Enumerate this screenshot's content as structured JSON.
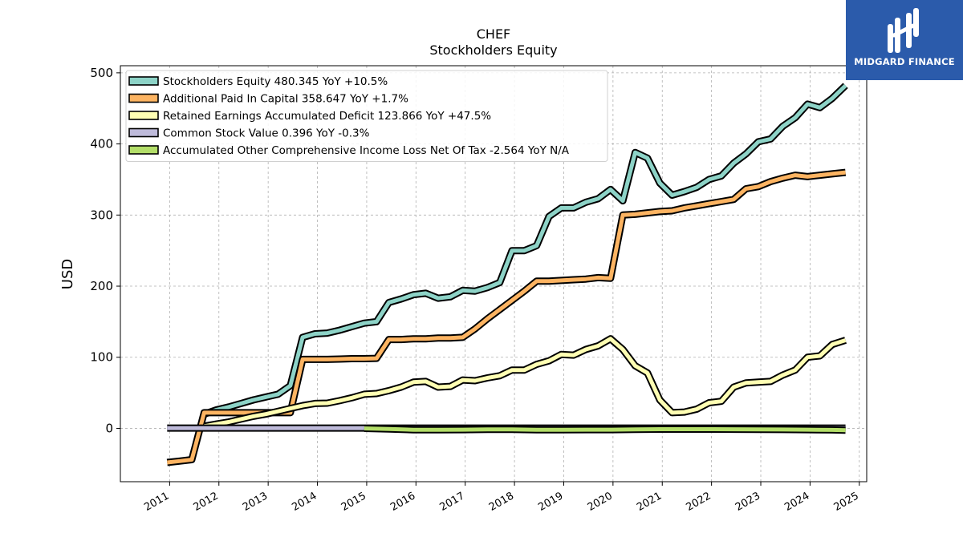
{
  "colors": {
    "equity": "#8dd3c7",
    "apic": "#fdb462",
    "retained": "#ffffb3",
    "common": "#bebada",
    "aoci": "#b3de69",
    "logo_bg": "#2b5bab"
  },
  "logo": {
    "text": "MIDGARD FINANCE"
  },
  "chart_data": {
    "type": "line",
    "title": "CHEF",
    "subtitle": "Stockholders  Equity",
    "xlabel": "",
    "ylabel": "USD",
    "ylim": [
      -75,
      510
    ],
    "xlim": [
      2010.0,
      2025.15
    ],
    "yticks": [
      0,
      100,
      200,
      300,
      400,
      500
    ],
    "xticks": [
      "2011",
      "2012",
      "2013",
      "2014",
      "2015",
      "2016",
      "2017",
      "2018",
      "2019",
      "2020",
      "2021",
      "2022",
      "2023",
      "2024",
      "2025"
    ],
    "grid": true,
    "legend_position": "top-left",
    "series": [
      {
        "name": "Stockholders Equity  480.345 YoY +10.5%",
        "color_key": "equity",
        "points": [
          [
            2011.7,
            20
          ],
          [
            2011.95,
            26
          ],
          [
            2012.2,
            30
          ],
          [
            2012.45,
            35
          ],
          [
            2012.7,
            40
          ],
          [
            2012.95,
            44
          ],
          [
            2013.2,
            48
          ],
          [
            2013.45,
            60
          ],
          [
            2013.7,
            128
          ],
          [
            2013.95,
            133
          ],
          [
            2014.2,
            134
          ],
          [
            2014.45,
            138
          ],
          [
            2014.7,
            143
          ],
          [
            2014.95,
            148
          ],
          [
            2015.2,
            150
          ],
          [
            2015.45,
            177
          ],
          [
            2015.7,
            182
          ],
          [
            2015.95,
            188
          ],
          [
            2016.2,
            190
          ],
          [
            2016.45,
            183
          ],
          [
            2016.7,
            185
          ],
          [
            2016.95,
            194
          ],
          [
            2017.2,
            193
          ],
          [
            2017.45,
            198
          ],
          [
            2017.7,
            205
          ],
          [
            2017.95,
            250
          ],
          [
            2018.2,
            250
          ],
          [
            2018.45,
            257
          ],
          [
            2018.7,
            298
          ],
          [
            2018.95,
            310
          ],
          [
            2019.2,
            310
          ],
          [
            2019.45,
            318
          ],
          [
            2019.7,
            323
          ],
          [
            2019.95,
            336
          ],
          [
            2020.2,
            320
          ],
          [
            2020.45,
            388
          ],
          [
            2020.7,
            380
          ],
          [
            2020.95,
            345
          ],
          [
            2021.2,
            328
          ],
          [
            2021.45,
            333
          ],
          [
            2021.7,
            339
          ],
          [
            2021.95,
            350
          ],
          [
            2022.2,
            355
          ],
          [
            2022.45,
            373
          ],
          [
            2022.7,
            386
          ],
          [
            2022.95,
            403
          ],
          [
            2023.2,
            407
          ],
          [
            2023.45,
            425
          ],
          [
            2023.7,
            437
          ],
          [
            2023.95,
            456
          ],
          [
            2024.2,
            451
          ],
          [
            2024.45,
            464
          ],
          [
            2024.72,
            482
          ]
        ]
      },
      {
        "name": "Additional Paid In Capital  358.647 YoY +1.7%",
        "color_key": "apic",
        "points": [
          [
            2010.95,
            -48
          ],
          [
            2011.2,
            -46
          ],
          [
            2011.45,
            -44
          ],
          [
            2011.7,
            22
          ],
          [
            2011.95,
            22
          ],
          [
            2012.2,
            22
          ],
          [
            2012.45,
            22
          ],
          [
            2012.7,
            22
          ],
          [
            2012.95,
            22
          ],
          [
            2013.2,
            22
          ],
          [
            2013.45,
            22
          ],
          [
            2013.7,
            97
          ],
          [
            2013.95,
            97
          ],
          [
            2014.2,
            97
          ],
          [
            2014.45,
            97.5
          ],
          [
            2014.7,
            98
          ],
          [
            2014.95,
            98
          ],
          [
            2015.2,
            98.5
          ],
          [
            2015.45,
            125
          ],
          [
            2015.7,
            125
          ],
          [
            2015.95,
            126
          ],
          [
            2016.2,
            126
          ],
          [
            2016.45,
            127
          ],
          [
            2016.7,
            127
          ],
          [
            2016.95,
            128
          ],
          [
            2017.2,
            140
          ],
          [
            2017.45,
            154
          ],
          [
            2017.7,
            167
          ],
          [
            2017.95,
            180
          ],
          [
            2018.2,
            193
          ],
          [
            2018.45,
            207
          ],
          [
            2018.7,
            207
          ],
          [
            2018.95,
            208
          ],
          [
            2019.2,
            209
          ],
          [
            2019.45,
            210
          ],
          [
            2019.7,
            212
          ],
          [
            2019.95,
            211
          ],
          [
            2020.2,
            300
          ],
          [
            2020.45,
            301
          ],
          [
            2020.7,
            303
          ],
          [
            2020.95,
            305
          ],
          [
            2021.2,
            306
          ],
          [
            2021.45,
            310
          ],
          [
            2021.7,
            313
          ],
          [
            2021.95,
            316
          ],
          [
            2022.2,
            319
          ],
          [
            2022.45,
            322
          ],
          [
            2022.7,
            337
          ],
          [
            2022.95,
            340
          ],
          [
            2023.2,
            347
          ],
          [
            2023.45,
            352
          ],
          [
            2023.7,
            356
          ],
          [
            2023.95,
            354
          ],
          [
            2024.2,
            356
          ],
          [
            2024.45,
            358
          ],
          [
            2024.72,
            360
          ]
        ]
      },
      {
        "name": "Retained Earnings Accumulated Deficit  123.866 YoY +47.5%",
        "color_key": "retained",
        "points": [
          [
            2011.7,
            3
          ],
          [
            2011.95,
            6
          ],
          [
            2012.2,
            9
          ],
          [
            2012.45,
            13
          ],
          [
            2012.7,
            17
          ],
          [
            2012.95,
            20
          ],
          [
            2013.2,
            24
          ],
          [
            2013.45,
            28
          ],
          [
            2013.7,
            32
          ],
          [
            2013.95,
            35
          ],
          [
            2014.2,
            35.5
          ],
          [
            2014.45,
            39
          ],
          [
            2014.7,
            43
          ],
          [
            2014.95,
            48
          ],
          [
            2015.2,
            49
          ],
          [
            2015.45,
            53
          ],
          [
            2015.7,
            58
          ],
          [
            2015.95,
            65
          ],
          [
            2016.2,
            66
          ],
          [
            2016.45,
            58
          ],
          [
            2016.7,
            59
          ],
          [
            2016.95,
            68
          ],
          [
            2017.2,
            67
          ],
          [
            2017.45,
            71
          ],
          [
            2017.7,
            74
          ],
          [
            2017.95,
            82
          ],
          [
            2018.2,
            82
          ],
          [
            2018.45,
            90
          ],
          [
            2018.7,
            95
          ],
          [
            2018.95,
            104
          ],
          [
            2019.2,
            103
          ],
          [
            2019.45,
            111
          ],
          [
            2019.7,
            116
          ],
          [
            2019.95,
            126
          ],
          [
            2020.2,
            111
          ],
          [
            2020.45,
            88
          ],
          [
            2020.7,
            78
          ],
          [
            2020.95,
            40
          ],
          [
            2021.2,
            22
          ],
          [
            2021.45,
            23
          ],
          [
            2021.7,
            27
          ],
          [
            2021.95,
            36
          ],
          [
            2022.2,
            38
          ],
          [
            2022.45,
            58
          ],
          [
            2022.7,
            64
          ],
          [
            2022.95,
            65
          ],
          [
            2023.2,
            66
          ],
          [
            2023.45,
            75
          ],
          [
            2023.7,
            82
          ],
          [
            2023.95,
            100
          ],
          [
            2024.2,
            102
          ],
          [
            2024.45,
            118
          ],
          [
            2024.72,
            124
          ]
        ]
      },
      {
        "name": "Common Stock Value  0.396 YoY -0.3%",
        "color_key": "common",
        "points": [
          [
            2010.95,
            0.4
          ],
          [
            2014.95,
            0.4
          ],
          [
            2016.95,
            0.4
          ],
          [
            2018.95,
            0.4
          ],
          [
            2020.95,
            0.4
          ],
          [
            2022.95,
            0.4
          ],
          [
            2024.72,
            0.4
          ]
        ]
      },
      {
        "name": "Accumulated Other Comprehensive Income Loss Net Of Tax  -2.564 YoY N/A",
        "color_key": "aoci",
        "points": [
          [
            2014.95,
            0
          ],
          [
            2015.45,
            -1
          ],
          [
            2015.95,
            -2
          ],
          [
            2016.45,
            -2
          ],
          [
            2016.95,
            -1.8
          ],
          [
            2017.45,
            -1.5
          ],
          [
            2017.95,
            -1.5
          ],
          [
            2018.45,
            -2
          ],
          [
            2018.95,
            -2
          ],
          [
            2019.45,
            -1.8
          ],
          [
            2019.95,
            -1.8
          ],
          [
            2020.45,
            -1.5
          ],
          [
            2020.95,
            -1.2
          ],
          [
            2021.45,
            -1.2
          ],
          [
            2021.95,
            -1.2
          ],
          [
            2022.45,
            -1.3
          ],
          [
            2022.95,
            -1.5
          ],
          [
            2023.45,
            -1.6
          ],
          [
            2023.95,
            -1.8
          ],
          [
            2024.45,
            -2.2
          ],
          [
            2024.72,
            -2.6
          ]
        ]
      }
    ]
  }
}
